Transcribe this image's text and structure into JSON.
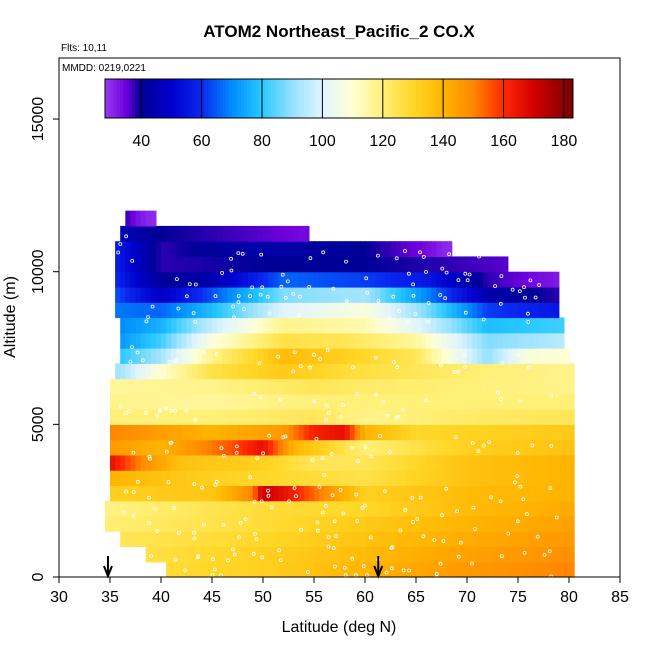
{
  "chart_data": {
    "type": "heatmap",
    "title": "ATOM2 Northeast_Pacific_2 CO.X",
    "flights_label": "Flts: 10,11",
    "mmdd_label": "MMDD: 0219,0221",
    "xlabel": "Latitude (deg N)",
    "ylabel": "Altitude (m)",
    "xlim": [
      30,
      85
    ],
    "ylim": [
      0,
      17000
    ],
    "x_ticks": [
      30,
      35,
      40,
      45,
      50,
      55,
      60,
      65,
      70,
      75,
      80,
      85
    ],
    "y_ticks": [
      0,
      5000,
      10000,
      15000
    ],
    "colorbar": {
      "range": [
        28,
        183
      ],
      "ticks": [
        40,
        60,
        80,
        100,
        120,
        140,
        160,
        180
      ]
    },
    "bin_height_m": 500,
    "altitude_bins": [
      {
        "alt": 250,
        "lat_min": 40.5,
        "lat_max": 80.5,
        "values": [
          [
            40,
            128
          ],
          [
            50,
            132
          ],
          [
            60,
            140
          ],
          [
            70,
            146
          ],
          [
            80,
            150
          ]
        ]
      },
      {
        "alt": 750,
        "lat_min": 38.5,
        "lat_max": 80.5,
        "values": [
          [
            38,
            126
          ],
          [
            50,
            132
          ],
          [
            60,
            138
          ],
          [
            70,
            144
          ],
          [
            80,
            148
          ]
        ]
      },
      {
        "alt": 1250,
        "lat_min": 36.0,
        "lat_max": 80.5,
        "values": [
          [
            36,
            124
          ],
          [
            50,
            130
          ],
          [
            60,
            136
          ],
          [
            70,
            142
          ],
          [
            80,
            146
          ]
        ]
      },
      {
        "alt": 1750,
        "lat_min": 34.5,
        "lat_max": 80.5,
        "values": [
          [
            34,
            120
          ],
          [
            50,
            128
          ],
          [
            60,
            134
          ],
          [
            70,
            140
          ],
          [
            80,
            144
          ]
        ]
      },
      {
        "alt": 2250,
        "lat_min": 34.5,
        "lat_max": 80.5,
        "values": [
          [
            34,
            118
          ],
          [
            50,
            128
          ],
          [
            60,
            130
          ],
          [
            70,
            138
          ],
          [
            80,
            142
          ]
        ]
      },
      {
        "alt": 2750,
        "lat_min": 35.0,
        "lat_max": 80.5,
        "values": [
          [
            35,
            132
          ],
          [
            45,
            135
          ],
          [
            49,
            150
          ],
          [
            50,
            172
          ],
          [
            53,
            162
          ],
          [
            60,
            132
          ],
          [
            70,
            138
          ],
          [
            80,
            140
          ]
        ]
      },
      {
        "alt": 3250,
        "lat_min": 35.0,
        "lat_max": 80.5,
        "values": [
          [
            35,
            140
          ],
          [
            45,
            132
          ],
          [
            55,
            128
          ],
          [
            60,
            126
          ],
          [
            70,
            136
          ],
          [
            80,
            140
          ]
        ]
      },
      {
        "alt": 3750,
        "lat_min": 35.0,
        "lat_max": 80.5,
        "values": [
          [
            35,
            166
          ],
          [
            38,
            150
          ],
          [
            42,
            136
          ],
          [
            50,
            132
          ],
          [
            55,
            124
          ],
          [
            60,
            124
          ],
          [
            70,
            136
          ],
          [
            80,
            140
          ]
        ]
      },
      {
        "alt": 4250,
        "lat_min": 35.0,
        "lat_max": 80.5,
        "values": [
          [
            35,
            146
          ],
          [
            40,
            140
          ],
          [
            47,
            156
          ],
          [
            50,
            166
          ],
          [
            53,
            140
          ],
          [
            60,
            120
          ],
          [
            70,
            132
          ],
          [
            80,
            136
          ]
        ]
      },
      {
        "alt": 4750,
        "lat_min": 35.0,
        "lat_max": 80.5,
        "values": [
          [
            35,
            150
          ],
          [
            45,
            140
          ],
          [
            52,
            146
          ],
          [
            55,
            162
          ],
          [
            58,
            166
          ],
          [
            60,
            140
          ],
          [
            65,
            130
          ],
          [
            80,
            134
          ]
        ]
      },
      {
        "alt": 5250,
        "lat_min": 35.0,
        "lat_max": 80.5,
        "values": [
          [
            35,
            120
          ],
          [
            45,
            120
          ],
          [
            55,
            124
          ],
          [
            60,
            118
          ],
          [
            70,
            122
          ],
          [
            80,
            124
          ]
        ]
      },
      {
        "alt": 5750,
        "lat_min": 35.0,
        "lat_max": 80.5,
        "values": [
          [
            35,
            118
          ],
          [
            45,
            116
          ],
          [
            55,
            120
          ],
          [
            60,
            120
          ],
          [
            70,
            120
          ],
          [
            80,
            120
          ]
        ]
      },
      {
        "alt": 6250,
        "lat_min": 35.0,
        "lat_max": 80.5,
        "values": [
          [
            35,
            116
          ],
          [
            45,
            118
          ],
          [
            55,
            124
          ],
          [
            60,
            122
          ],
          [
            70,
            120
          ],
          [
            80,
            118
          ]
        ]
      },
      {
        "alt": 6750,
        "lat_min": 35.5,
        "lat_max": 80.5,
        "values": [
          [
            36,
            92
          ],
          [
            40,
            110
          ],
          [
            45,
            126
          ],
          [
            52,
            134
          ],
          [
            58,
            128
          ],
          [
            65,
            124
          ],
          [
            72,
            120
          ],
          [
            80,
            118
          ]
        ]
      },
      {
        "alt": 7250,
        "lat_min": 36.0,
        "lat_max": 80.0,
        "values": [
          [
            36,
            80
          ],
          [
            40,
            92
          ],
          [
            45,
            118
          ],
          [
            52,
            138
          ],
          [
            58,
            132
          ],
          [
            65,
            124
          ],
          [
            72,
            90
          ],
          [
            76,
            108
          ],
          [
            80,
            110
          ]
        ]
      },
      {
        "alt": 7750,
        "lat_min": 36.0,
        "lat_max": 79.5,
        "values": [
          [
            36,
            72
          ],
          [
            40,
            82
          ],
          [
            45,
            108
          ],
          [
            52,
            126
          ],
          [
            58,
            124
          ],
          [
            65,
            116
          ],
          [
            72,
            88
          ],
          [
            79,
            94
          ]
        ]
      },
      {
        "alt": 8250,
        "lat_min": 36.0,
        "lat_max": 79.5,
        "values": [
          [
            36,
            70
          ],
          [
            40,
            76
          ],
          [
            45,
            96
          ],
          [
            52,
            118
          ],
          [
            60,
            114
          ],
          [
            66,
            98
          ],
          [
            72,
            78
          ],
          [
            79,
            82
          ]
        ]
      },
      {
        "alt": 8750,
        "lat_min": 35.5,
        "lat_max": 79.0,
        "values": [
          [
            35,
            68
          ],
          [
            40,
            66
          ],
          [
            45,
            78
          ],
          [
            52,
            100
          ],
          [
            60,
            108
          ],
          [
            66,
            88
          ],
          [
            72,
            62
          ],
          [
            79,
            56
          ]
        ]
      },
      {
        "alt": 9250,
        "lat_min": 35.5,
        "lat_max": 79.0,
        "values": [
          [
            35,
            66
          ],
          [
            40,
            48
          ],
          [
            45,
            64
          ],
          [
            52,
            88
          ],
          [
            60,
            92
          ],
          [
            66,
            70
          ],
          [
            72,
            44
          ],
          [
            79,
            38
          ]
        ]
      },
      {
        "alt": 9750,
        "lat_min": 35.5,
        "lat_max": 79.0,
        "values": [
          [
            35,
            62
          ],
          [
            40,
            40
          ],
          [
            45,
            44
          ],
          [
            52,
            66
          ],
          [
            60,
            62
          ],
          [
            66,
            56
          ],
          [
            72,
            38
          ],
          [
            79,
            32
          ]
        ]
      },
      {
        "alt": 10250,
        "lat_min": 35.5,
        "lat_max": 74.0,
        "values": [
          [
            35,
            60
          ],
          [
            40,
            38
          ],
          [
            50,
            40
          ],
          [
            60,
            40
          ],
          [
            68,
            38
          ],
          [
            74,
            36
          ]
        ]
      },
      {
        "alt": 10750,
        "lat_min": 35.5,
        "lat_max": 68.5,
        "values": [
          [
            35,
            60
          ],
          [
            40,
            38
          ],
          [
            50,
            44
          ],
          [
            60,
            40
          ],
          [
            66,
            34
          ],
          [
            68,
            30
          ]
        ]
      },
      {
        "alt": 11250,
        "lat_min": 36.0,
        "lat_max": 54.5,
        "values": [
          [
            36,
            46
          ],
          [
            40,
            40
          ],
          [
            45,
            38
          ],
          [
            50,
            36
          ],
          [
            54,
            34
          ]
        ]
      },
      {
        "alt": 11750,
        "lat_min": 36.5,
        "lat_max": 39.5,
        "values": [
          [
            36,
            40
          ],
          [
            38,
            32
          ],
          [
            39,
            30
          ]
        ]
      }
    ],
    "flight_segments": [
      {
        "alt": 300,
        "lat_range": [
          40.5,
          80.0
        ]
      },
      {
        "alt": 1000,
        "lat_range": [
          38.0,
          80.0
        ]
      },
      {
        "alt": 1900,
        "lat_range": [
          36.0,
          80.0
        ]
      },
      {
        "alt": 2900,
        "lat_range": [
          35.0,
          80.0
        ]
      },
      {
        "alt": 4200,
        "lat_range": [
          35.0,
          80.0
        ]
      },
      {
        "alt": 5600,
        "lat_range": [
          36.0,
          80.0
        ]
      },
      {
        "alt": 7100,
        "lat_range": [
          37.0,
          79.0
        ]
      },
      {
        "alt": 8800,
        "lat_range": [
          38.0,
          78.0
        ]
      },
      {
        "alt": 9500,
        "lat_range": [
          40.0,
          76.0
        ]
      },
      {
        "alt": 10300,
        "lat_range": [
          44.0,
          74.0
        ]
      },
      {
        "alt": 10800,
        "lat_range": [
          35.5,
          38.0
        ]
      },
      {
        "alt": 9700,
        "lat_range": [
          74.0,
          78.0
        ]
      }
    ],
    "arrows": [
      {
        "lat": 34.8
      },
      {
        "lat": 61.3
      }
    ]
  }
}
